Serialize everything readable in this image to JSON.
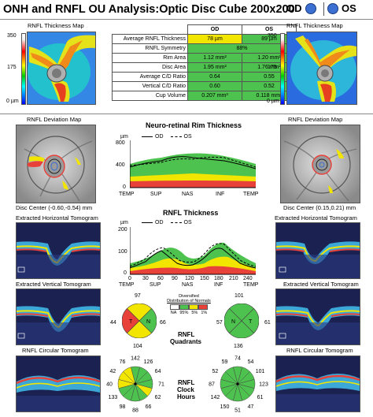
{
  "header": {
    "title": "ONH and RNFL OU Analysis:Optic Disc Cube 200x200",
    "od_label": "OD",
    "os_label": "OS"
  },
  "thickness_map": {
    "title_left": "RNFL Thickness Map",
    "title_right": "RNFL Thickness Map",
    "scale_top": "350",
    "scale_mid": "175",
    "scale_bottom": "0 µm"
  },
  "summary_table": {
    "header_od": "OD",
    "header_os": "OS",
    "rows": [
      {
        "label": "Average RNFL Thickness",
        "od": "78 µm",
        "os": "89 µm",
        "od_color": "y",
        "os_color": "g"
      },
      {
        "label": "RNFL Symmetry",
        "merged": "88%",
        "color": "g"
      },
      {
        "label": "Rim Area",
        "od": "1.12 mm²",
        "os": "1.20 mm²",
        "od_color": "g",
        "os_color": "g"
      },
      {
        "label": "Disc Area",
        "od": "1.95 mm²",
        "os": "1.76 mm²",
        "od_color": "g",
        "os_color": "g"
      },
      {
        "label": "Average C/D Ratio",
        "od": "0.64",
        "os": "0.55",
        "od_color": "g",
        "os_color": "g"
      },
      {
        "label": "Vertical C/D Ratio",
        "od": "0.60",
        "os": "0.52",
        "od_color": "g",
        "os_color": "g"
      },
      {
        "label": "Cup Volume",
        "od": "0.207 mm³",
        "os": "0.118 mm³",
        "od_color": "g",
        "os_color": "g"
      }
    ]
  },
  "deviation_map": {
    "title_left": "RNFL Deviation Map",
    "title_right": "RNFL Deviation Map",
    "center_left": "Disc Center  (-0.60,-0.54) mm",
    "center_right": "Disc Center  (0.15,0.21) mm"
  },
  "rim_chart": {
    "title": "Neuro-retinal Rim Thickness",
    "unit": "µm",
    "legend_od": "OD",
    "legend_os": "OS",
    "yticks": [
      "800",
      "400",
      "0"
    ],
    "xticks": [
      "TEMP",
      "SUP",
      "NAS",
      "INF",
      "TEMP"
    ]
  },
  "rnfl_chart": {
    "title": "RNFL Thickness",
    "unit": "µm",
    "legend_od": "OD",
    "legend_os": "OS",
    "yticks": [
      "200",
      "100",
      "0"
    ],
    "xticks": [
      "0",
      "30",
      "60",
      "90",
      "120",
      "150",
      "180",
      "210",
      "240"
    ],
    "xlabels": [
      "TEMP",
      "SUP",
      "NAS",
      "INF",
      "TEMP"
    ]
  },
  "tomograms": {
    "h_left": "Extracted Horizontal Tomogram",
    "h_right": "Extracted Horizontal Tomogram",
    "v_left": "Extracted Vertical Tomogram",
    "v_right": "Extracted Vertical Tomogram",
    "c_left": "RNFL Circular Tomogram",
    "c_right": "RNFL Circular Tomogram"
  },
  "quadrants": {
    "title_line1": "RNFL",
    "title_line2": "Quadrants",
    "legend_title1": "Diversified",
    "legend_title2": "Distribution of Normals",
    "legend_values": [
      "NA",
      "95%",
      "5%",
      "1%"
    ],
    "od": {
      "S": "97",
      "N": "66",
      "I": "104",
      "T": "44"
    },
    "os": {
      "S": "101",
      "N": "57",
      "I": "136",
      "T": "61"
    }
  },
  "clock_hours": {
    "title_line1": "RNFL",
    "title_line2": "Clock",
    "title_line3": "Hours",
    "od": [
      "142",
      "126",
      "64",
      "71",
      "62",
      "66",
      "88",
      "98",
      "133",
      "40",
      "42",
      "76"
    ],
    "os": [
      "74",
      "54",
      "101",
      "123",
      "61",
      "47",
      "51",
      "150",
      "142",
      "87",
      "52",
      "59"
    ]
  },
  "colors": {
    "normal_green": "#4ec24e",
    "borderline_yellow": "#f2e600",
    "abnormal_red": "#e8413a",
    "indicator_blue": "#3b6fd1"
  }
}
